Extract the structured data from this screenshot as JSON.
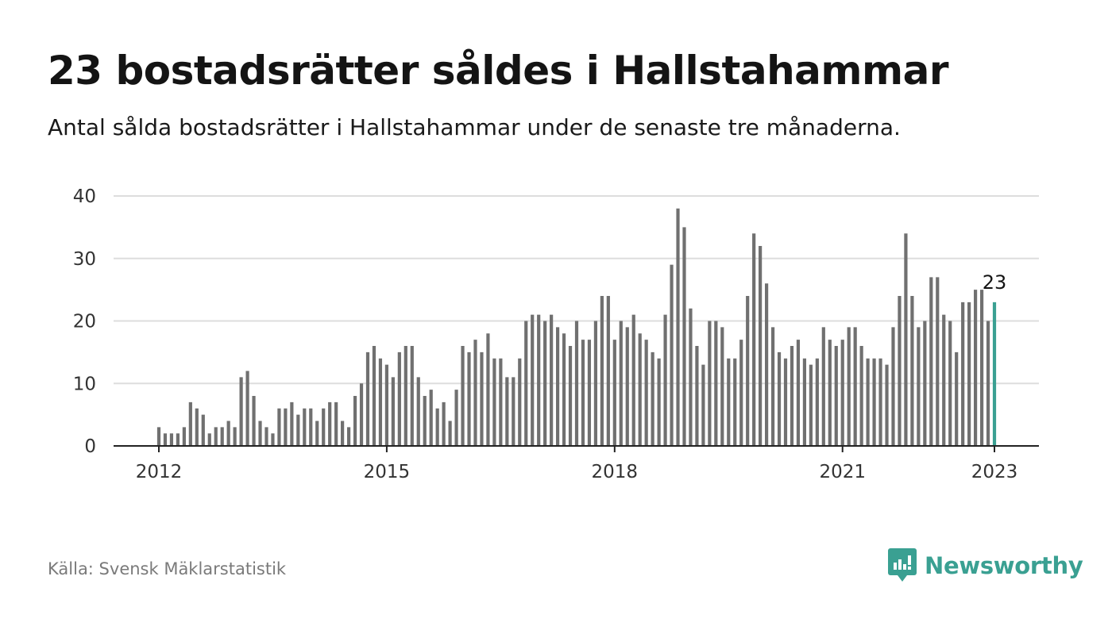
{
  "header": {
    "title": "23 bostadsrätter såldes i Hallstahammar",
    "subtitle": "Antal sålda bostadsrätter i Hallstahammar under de senaste tre månaderna."
  },
  "footer": {
    "source": "Källa: Svensk Mäklarstatistik",
    "brand": "Newsworthy",
    "brand_icon": "bar-chart-speech-bubble-icon"
  },
  "colors": {
    "bar": "#707070",
    "highlight": "#3aa092",
    "grid": "#dddddd",
    "axis": "#222222",
    "text": "#141414"
  },
  "chart_data": {
    "type": "bar",
    "title": "",
    "xlabel": "",
    "ylabel": "",
    "ylim": [
      0,
      40
    ],
    "yticks": [
      0,
      10,
      20,
      30,
      40
    ],
    "xticks": [
      "2012",
      "2015",
      "2018",
      "2021",
      "2023"
    ],
    "xtick_months": [
      "2012-01",
      "2015-01",
      "2018-01",
      "2021-01",
      "2023-01"
    ],
    "grid": true,
    "highlight_label": "23",
    "series": [
      {
        "months": [
          "2012-01",
          "2012-02",
          "2012-03",
          "2012-04",
          "2012-05",
          "2012-06",
          "2012-07",
          "2012-08",
          "2012-09",
          "2012-10",
          "2012-11",
          "2012-12",
          "2013-01",
          "2013-02",
          "2013-03",
          "2013-04",
          "2013-05",
          "2013-06",
          "2013-07",
          "2013-08",
          "2013-09",
          "2013-10",
          "2013-11",
          "2013-12",
          "2014-01",
          "2014-02",
          "2014-03",
          "2014-04",
          "2014-05",
          "2014-06",
          "2014-07",
          "2014-08",
          "2014-09",
          "2014-10",
          "2014-11",
          "2014-12",
          "2015-01",
          "2015-02",
          "2015-03",
          "2015-04",
          "2015-05",
          "2015-06",
          "2015-07",
          "2015-08",
          "2015-09",
          "2015-10",
          "2015-11",
          "2015-12",
          "2016-01",
          "2016-02",
          "2016-03",
          "2016-04",
          "2016-05",
          "2016-06",
          "2016-07",
          "2016-08",
          "2016-09",
          "2016-10",
          "2016-11",
          "2016-12",
          "2017-01",
          "2017-02",
          "2017-03",
          "2017-04",
          "2017-05",
          "2017-06",
          "2017-07",
          "2017-08",
          "2017-09",
          "2017-10",
          "2017-11",
          "2017-12",
          "2018-01",
          "2018-02",
          "2018-03",
          "2018-04",
          "2018-05",
          "2018-06",
          "2018-07",
          "2018-08",
          "2018-09",
          "2018-10",
          "2018-11",
          "2018-12",
          "2019-01",
          "2019-02",
          "2019-03",
          "2019-04",
          "2019-05",
          "2019-06",
          "2019-07",
          "2019-08",
          "2019-09",
          "2019-10",
          "2019-11",
          "2019-12",
          "2020-01",
          "2020-02",
          "2020-03",
          "2020-04",
          "2020-05",
          "2020-06",
          "2020-07",
          "2020-08",
          "2020-09",
          "2020-10",
          "2020-11",
          "2020-12",
          "2021-01",
          "2021-02",
          "2021-03",
          "2021-04",
          "2021-05",
          "2021-06",
          "2021-07",
          "2021-08",
          "2021-09",
          "2021-10",
          "2021-11",
          "2021-12",
          "2022-01",
          "2022-02",
          "2022-03",
          "2022-04",
          "2022-05",
          "2022-06",
          "2022-07",
          "2022-08",
          "2022-09",
          "2022-10",
          "2022-11",
          "2022-12",
          "2023-01"
        ],
        "values": [
          3,
          2,
          2,
          2,
          3,
          7,
          6,
          5,
          2,
          3,
          3,
          4,
          3,
          11,
          12,
          8,
          4,
          3,
          2,
          6,
          6,
          7,
          5,
          6,
          6,
          4,
          6,
          7,
          7,
          4,
          3,
          8,
          10,
          15,
          16,
          14,
          13,
          11,
          15,
          16,
          16,
          11,
          8,
          9,
          6,
          7,
          4,
          9,
          16,
          15,
          17,
          15,
          18,
          14,
          14,
          11,
          11,
          14,
          20,
          21,
          21,
          20,
          21,
          19,
          18,
          16,
          20,
          17,
          17,
          20,
          24,
          24,
          17,
          20,
          19,
          21,
          18,
          17,
          15,
          14,
          21,
          29,
          38,
          35,
          22,
          16,
          13,
          20,
          20,
          19,
          14,
          14,
          17,
          24,
          34,
          32,
          26,
          19,
          15,
          14,
          16,
          17,
          14,
          13,
          14,
          19,
          17,
          16,
          17,
          19,
          19,
          16,
          14,
          14,
          14,
          13,
          19,
          24,
          34,
          24,
          19,
          20,
          27,
          27,
          21,
          20,
          15,
          23,
          23,
          25,
          25,
          20,
          23
        ]
      }
    ]
  }
}
